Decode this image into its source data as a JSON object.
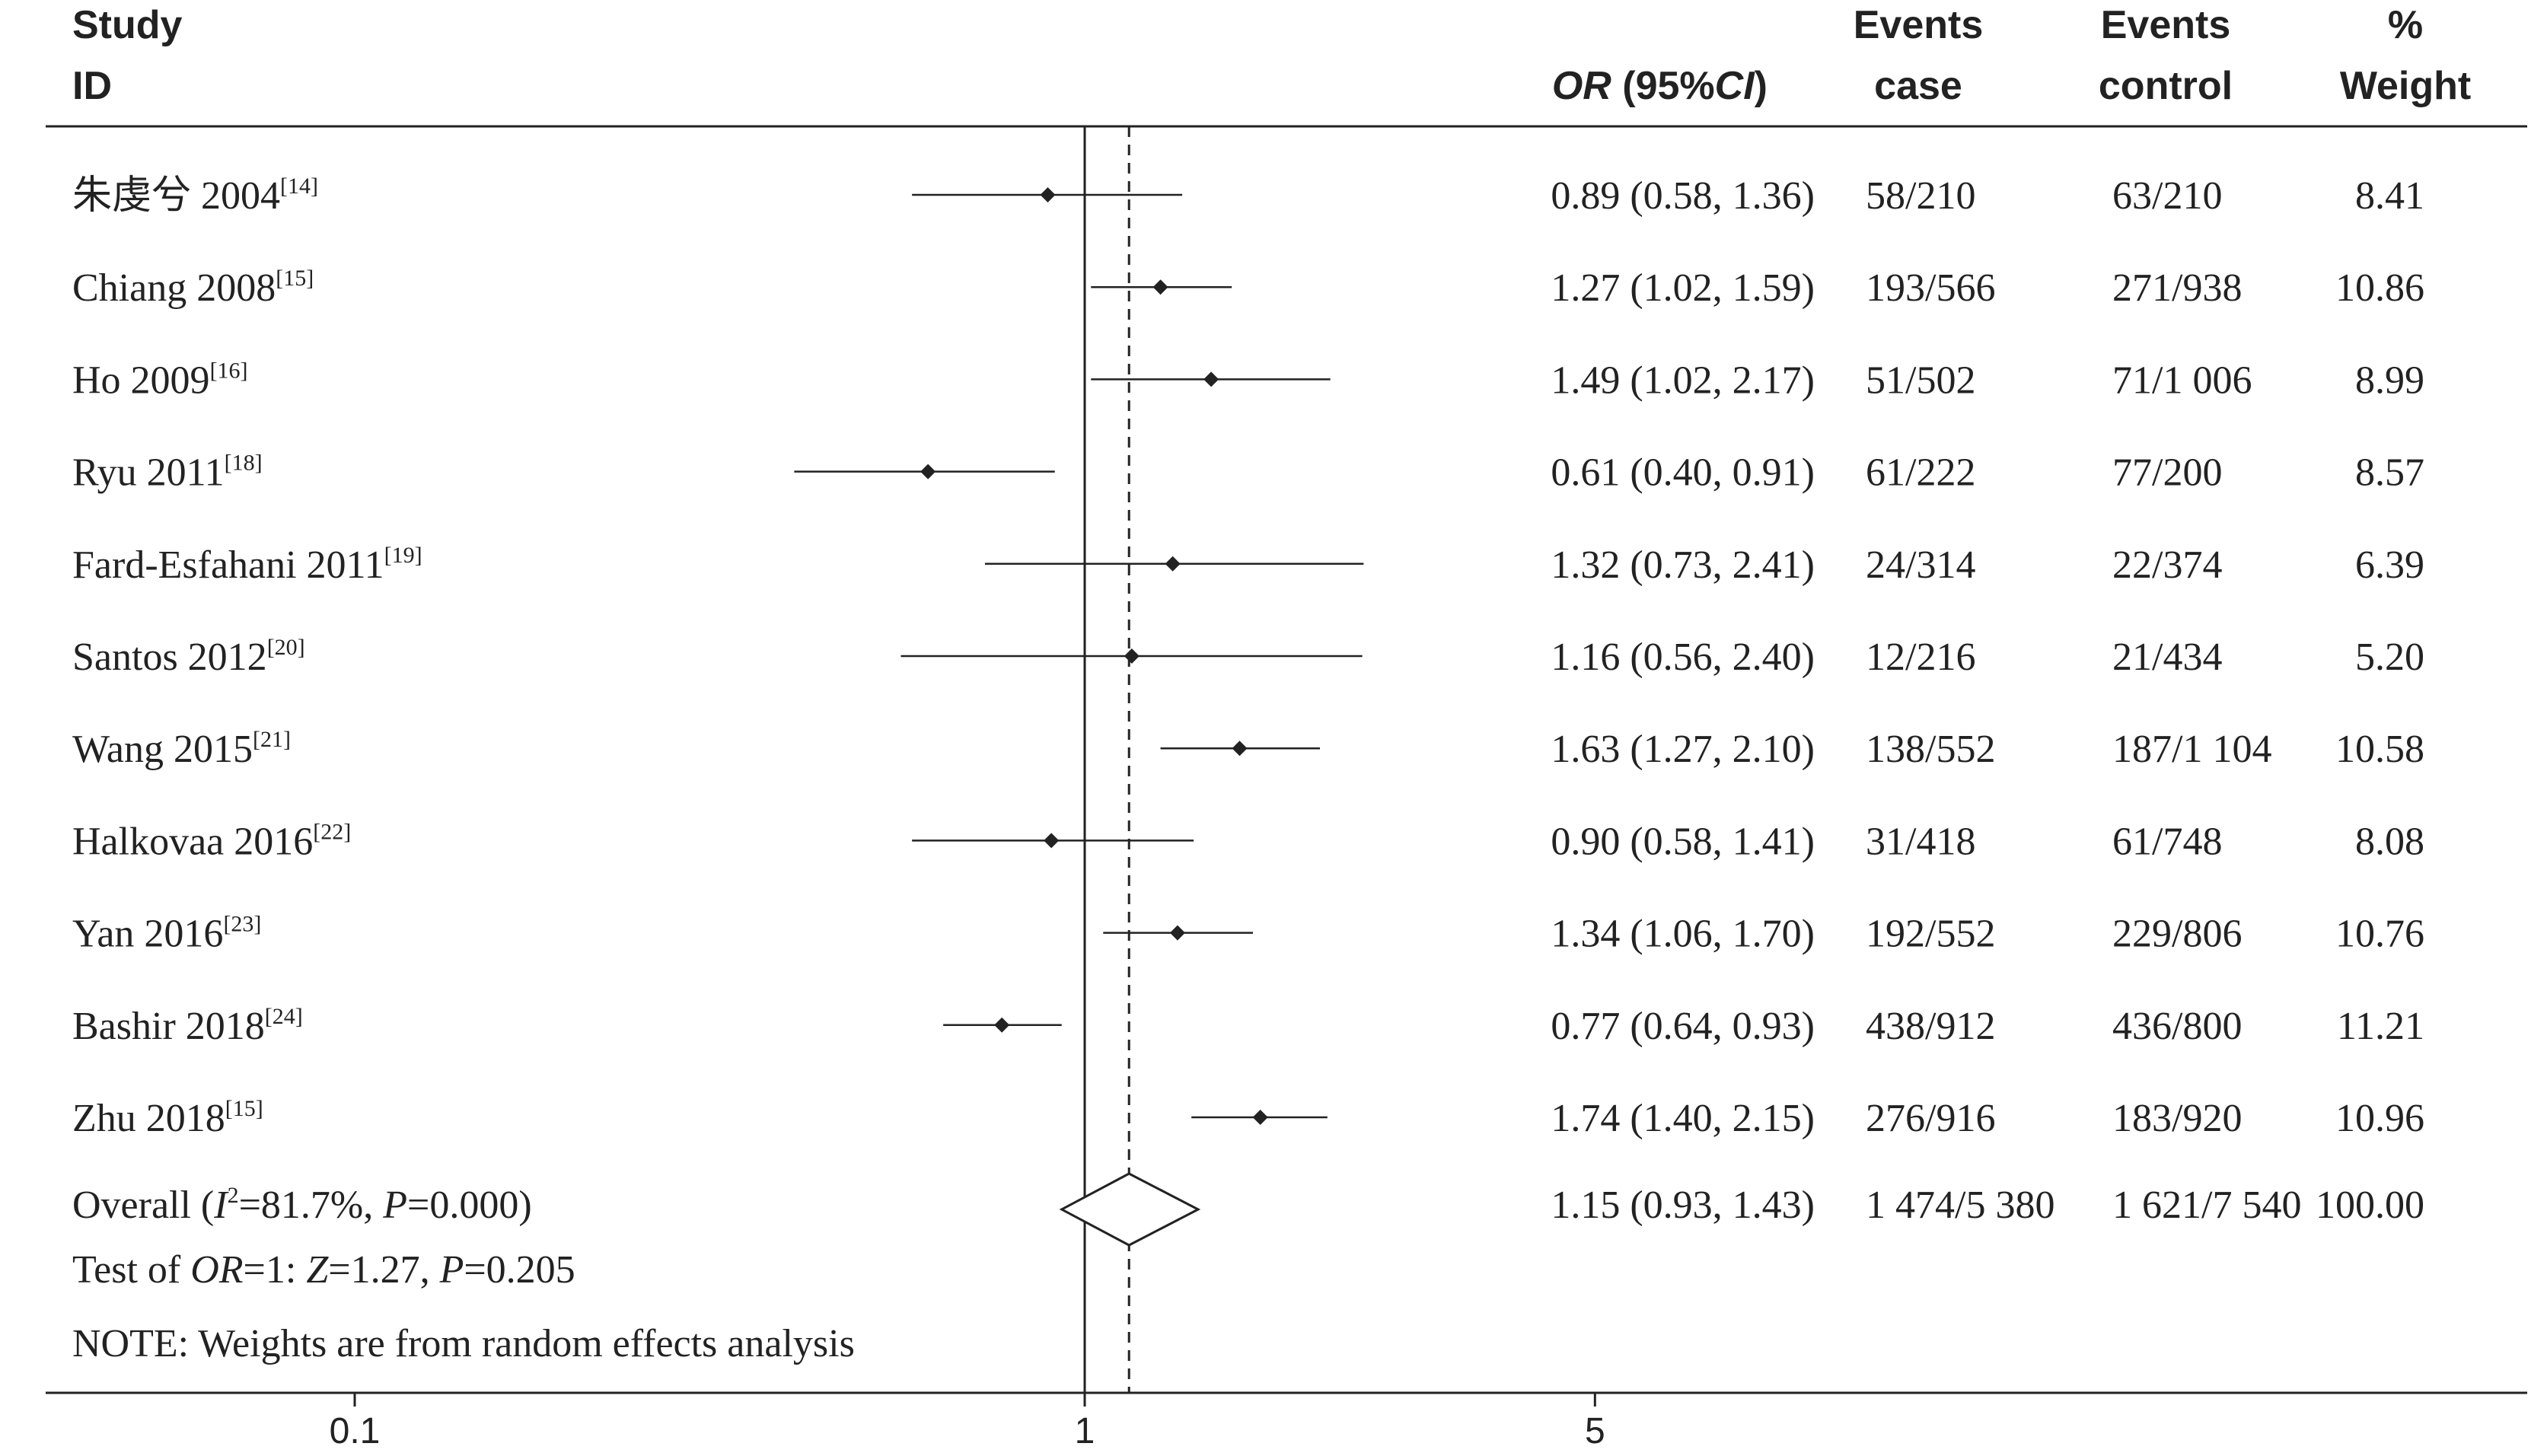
{
  "chart_data": {
    "type": "forest",
    "scale": "log",
    "xlim": [
      0.1,
      5
    ],
    "x_ticks": [
      "0.1",
      "1",
      "5"
    ],
    "null_line": 1,
    "reference_line": 1.15,
    "headers": {
      "study_1": "Study",
      "study_2": "ID",
      "or_italic": "OR",
      "or_mid": " (95%",
      "or_ci": "CI",
      "or_close": ")",
      "case_1": "Events",
      "case_2": "case",
      "control_1": "Events",
      "control_2": "control",
      "weight_1": "%",
      "weight_2": "Weight"
    },
    "studies": [
      {
        "name": "朱虔兮 2004",
        "ref": "[14]",
        "or": 0.89,
        "lo": 0.58,
        "hi": 1.36,
        "or_text": "0.89 (0.58, 1.36)",
        "case": "58/210",
        "control": "63/210",
        "weight": "8.41"
      },
      {
        "name": "Chiang 2008",
        "ref": "[15]",
        "or": 1.27,
        "lo": 1.02,
        "hi": 1.59,
        "or_text": "1.27 (1.02, 1.59)",
        "case": "193/566",
        "control": "271/938",
        "weight": "10.86"
      },
      {
        "name": "Ho 2009",
        "ref": "[16]",
        "or": 1.49,
        "lo": 1.02,
        "hi": 2.17,
        "or_text": "1.49 (1.02, 2.17)",
        "case": "51/502",
        "control": "71/1 006",
        "weight": "8.99"
      },
      {
        "name": "Ryu 2011",
        "ref": "[18]",
        "or": 0.61,
        "lo": 0.4,
        "hi": 0.91,
        "or_text": "0.61 (0.40, 0.91)",
        "case": "61/222",
        "control": "77/200",
        "weight": "8.57"
      },
      {
        "name": "Fard-Esfahani 2011",
        "ref": "[19]",
        "or": 1.32,
        "lo": 0.73,
        "hi": 2.41,
        "or_text": "1.32 (0.73, 2.41)",
        "case": "24/314",
        "control": "22/374",
        "weight": "6.39"
      },
      {
        "name": "Santos 2012",
        "ref": "[20]",
        "or": 1.16,
        "lo": 0.56,
        "hi": 2.4,
        "or_text": "1.16 (0.56, 2.40)",
        "case": "12/216",
        "control": "21/434",
        "weight": "5.20"
      },
      {
        "name": "Wang 2015",
        "ref": "[21]",
        "or": 1.63,
        "lo": 1.27,
        "hi": 2.1,
        "or_text": "1.63 (1.27, 2.10)",
        "case": "138/552",
        "control": "187/1 104",
        "weight": "10.58"
      },
      {
        "name": "Halkovaa 2016",
        "ref": "[22]",
        "or": 0.9,
        "lo": 0.58,
        "hi": 1.41,
        "or_text": "0.90 (0.58, 1.41)",
        "case": "31/418",
        "control": "61/748",
        "weight": "8.08"
      },
      {
        "name": "Yan 2016",
        "ref": "[23]",
        "or": 1.34,
        "lo": 1.06,
        "hi": 1.7,
        "or_text": "1.34 (1.06, 1.70)",
        "case": "192/552",
        "control": "229/806",
        "weight": "10.76"
      },
      {
        "name": "Bashir 2018",
        "ref": "[24]",
        "or": 0.77,
        "lo": 0.64,
        "hi": 0.93,
        "or_text": "0.77 (0.64, 0.93)",
        "case": "438/912",
        "control": "436/800",
        "weight": "11.21"
      },
      {
        "name": "Zhu 2018",
        "ref": "[15]",
        "or": 1.74,
        "lo": 1.4,
        "hi": 2.15,
        "or_text": "1.74 (1.40, 2.15)",
        "case": "276/916",
        "control": "183/920",
        "weight": "10.96"
      }
    ],
    "overall": {
      "label_prefix": "Overall  (",
      "i2_symbol": "I",
      "i2_exp": "2",
      "i2_rest": "=81.7%, ",
      "p_symbol": "P",
      "p_rest": "=0.000)",
      "or": 1.15,
      "lo": 0.93,
      "hi": 1.43,
      "or_text": "1.15 (0.93, 1.43)",
      "case": "1 474/5 380",
      "control": "1 621/7 540",
      "weight": "100.00"
    },
    "test_line": {
      "prefix": "Test of ",
      "or_symbol": "OR",
      "mid1": "=1: ",
      "z_symbol": "Z",
      "mid2": "=1.27, ",
      "p_symbol": "P",
      "end": "=0.205"
    },
    "note": "NOTE: Weights are from random effects analysis"
  }
}
